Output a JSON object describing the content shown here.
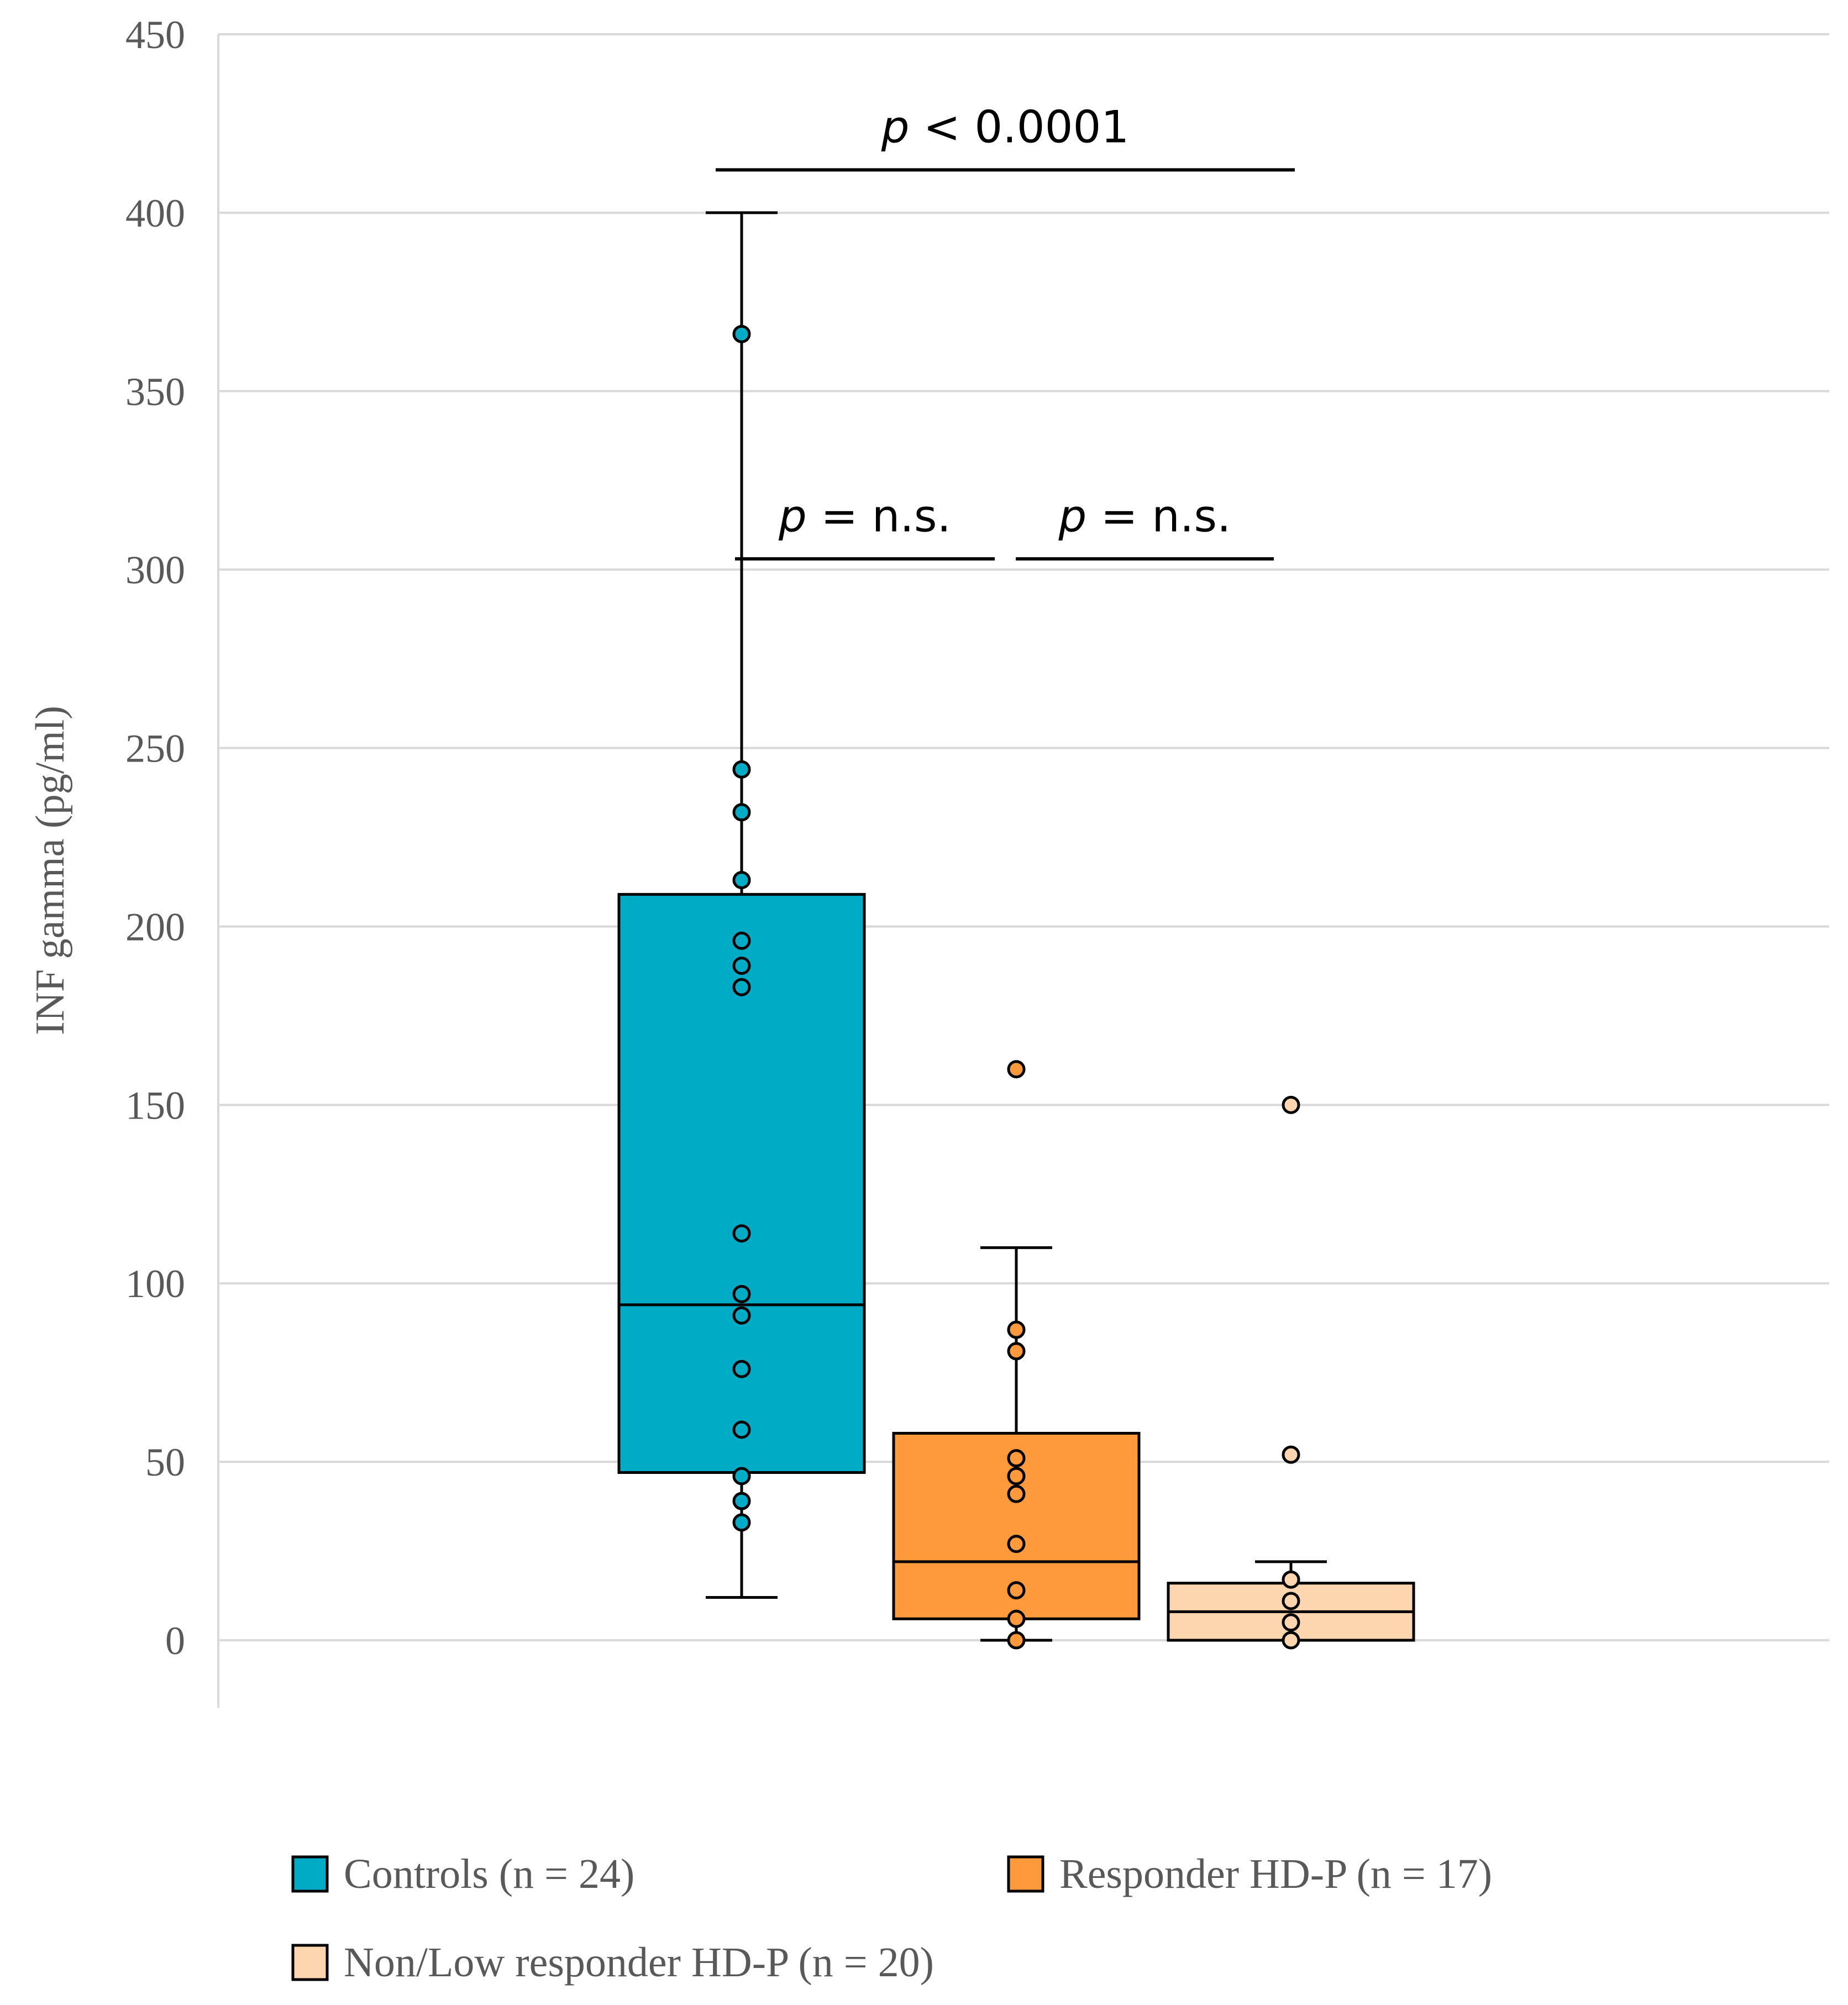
{
  "chart_data": {
    "type": "box",
    "title": "",
    "xlabel": "",
    "ylabel": "INF gamma (pg/ml)",
    "ylim": [
      0,
      450
    ],
    "yticks": [
      0,
      50,
      100,
      150,
      200,
      250,
      300,
      350,
      400,
      450
    ],
    "grid": true,
    "series": [
      {
        "name": "Controls (n = 24)",
        "color": "#00ACC5",
        "whisker_low": 12,
        "q1": 47,
        "median": 94,
        "q3": 209,
        "whisker_high": 400,
        "points": [
          366,
          244,
          232,
          213,
          196,
          189,
          183,
          114,
          97,
          91,
          76,
          59,
          46,
          39,
          33
        ]
      },
      {
        "name": "Responder HD-P (n = 17)",
        "color": "#FF9A3C",
        "whisker_low": 0,
        "q1": 6,
        "median": 22,
        "q3": 58,
        "whisker_high": 110,
        "points": [
          160,
          87,
          81,
          51,
          46,
          41,
          27,
          14,
          6,
          0
        ]
      },
      {
        "name": "Non/Low responder HD-P (n = 20)",
        "color": "#FDD5AE",
        "whisker_low": 0,
        "q1": 0,
        "median": 8,
        "q3": 16,
        "whisker_high": 22,
        "points": [
          150,
          52,
          17,
          11,
          5,
          0
        ]
      }
    ],
    "annotations": [
      {
        "p": "p",
        "rest": " < 0.0001",
        "from": 0,
        "to": 2,
        "level": 0
      },
      {
        "p": "p",
        "rest": " = n.s.",
        "from": 0,
        "to": 1,
        "level": 1
      },
      {
        "p": "p",
        "rest": " = n.s.",
        "from": 1,
        "to": 2,
        "level": 1
      }
    ],
    "legend_placement": "bottom"
  }
}
